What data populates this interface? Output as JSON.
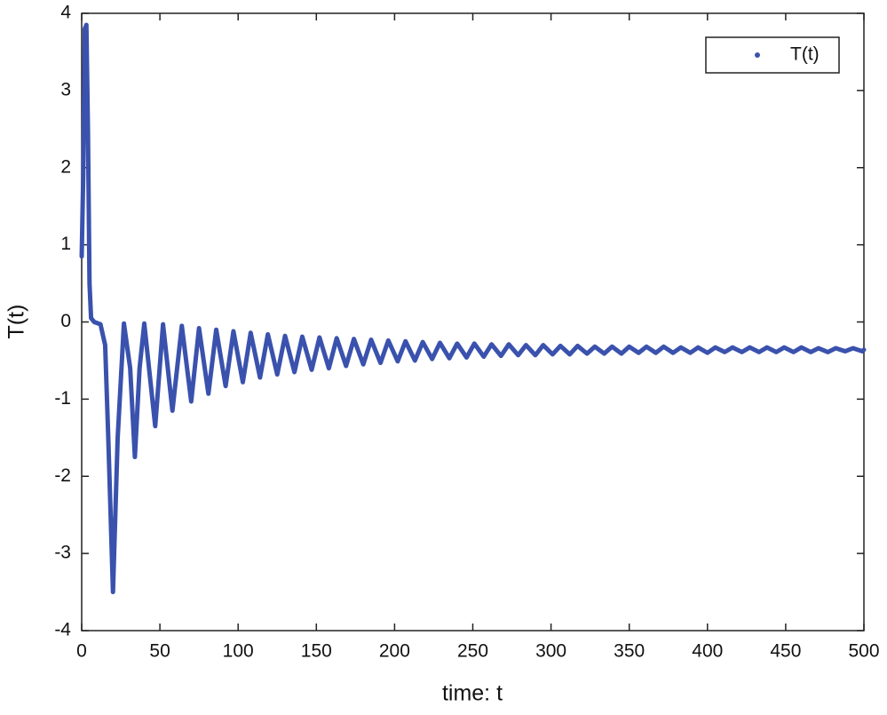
{
  "chart_data": {
    "type": "line",
    "xlabel": "time: t",
    "ylabel": "T(t)",
    "legend": "top-right",
    "xlim": [
      0,
      500
    ],
    "ylim": [
      -4,
      4
    ],
    "xticks": [
      0,
      50,
      100,
      150,
      200,
      250,
      300,
      350,
      400,
      450,
      500
    ],
    "yticks": [
      -4,
      -3,
      -2,
      -1,
      0,
      1,
      2,
      3,
      4
    ],
    "x": [
      0,
      1,
      2,
      3,
      4,
      5,
      6,
      8,
      12,
      15,
      17,
      20,
      23,
      27,
      31,
      34,
      37,
      40,
      47,
      52,
      58,
      64,
      70,
      75,
      81,
      86,
      92,
      97,
      103,
      108,
      114,
      119,
      125,
      130,
      136,
      141,
      147,
      152,
      158,
      163,
      169,
      174,
      180,
      185,
      191,
      196,
      202,
      207,
      213,
      218,
      224,
      229,
      235,
      240,
      246,
      251,
      257,
      262,
      268,
      273,
      279,
      284,
      290,
      295,
      301,
      306,
      312,
      317,
      323,
      328,
      334,
      339,
      345,
      350,
      356,
      361,
      367,
      372,
      378,
      383,
      389,
      394,
      400,
      405,
      411,
      416,
      422,
      427,
      433,
      438,
      444,
      449,
      455,
      460,
      466,
      471,
      477,
      482,
      488,
      493,
      499,
      500
    ],
    "series": [
      {
        "name": "T(t)",
        "color": "#3a52ad",
        "values": [
          0.85,
          1.9,
          3.8,
          3.85,
          2.5,
          0.5,
          0.05,
          0,
          -0.03,
          -0.3,
          -1.5,
          -3.5,
          -1.5,
          -0.02,
          -0.6,
          -1.75,
          -0.6,
          -0.02,
          -1.35,
          -0.03,
          -1.15,
          -0.05,
          -1.03,
          -0.08,
          -0.93,
          -0.1,
          -0.83,
          -0.12,
          -0.78,
          -0.14,
          -0.72,
          -0.16,
          -0.68,
          -0.18,
          -0.65,
          -0.19,
          -0.62,
          -0.2,
          -0.6,
          -0.21,
          -0.57,
          -0.22,
          -0.55,
          -0.23,
          -0.53,
          -0.24,
          -0.51,
          -0.25,
          -0.5,
          -0.26,
          -0.48,
          -0.27,
          -0.47,
          -0.28,
          -0.46,
          -0.28,
          -0.45,
          -0.29,
          -0.44,
          -0.29,
          -0.43,
          -0.3,
          -0.43,
          -0.3,
          -0.42,
          -0.31,
          -0.42,
          -0.31,
          -0.41,
          -0.32,
          -0.41,
          -0.32,
          -0.41,
          -0.32,
          -0.4,
          -0.32,
          -0.4,
          -0.32,
          -0.4,
          -0.33,
          -0.4,
          -0.33,
          -0.4,
          -0.33,
          -0.39,
          -0.33,
          -0.39,
          -0.33,
          -0.39,
          -0.33,
          -0.39,
          -0.33,
          -0.39,
          -0.33,
          -0.39,
          -0.34,
          -0.39,
          -0.34,
          -0.38,
          -0.34,
          -0.38,
          -0.36
        ]
      }
    ]
  }
}
